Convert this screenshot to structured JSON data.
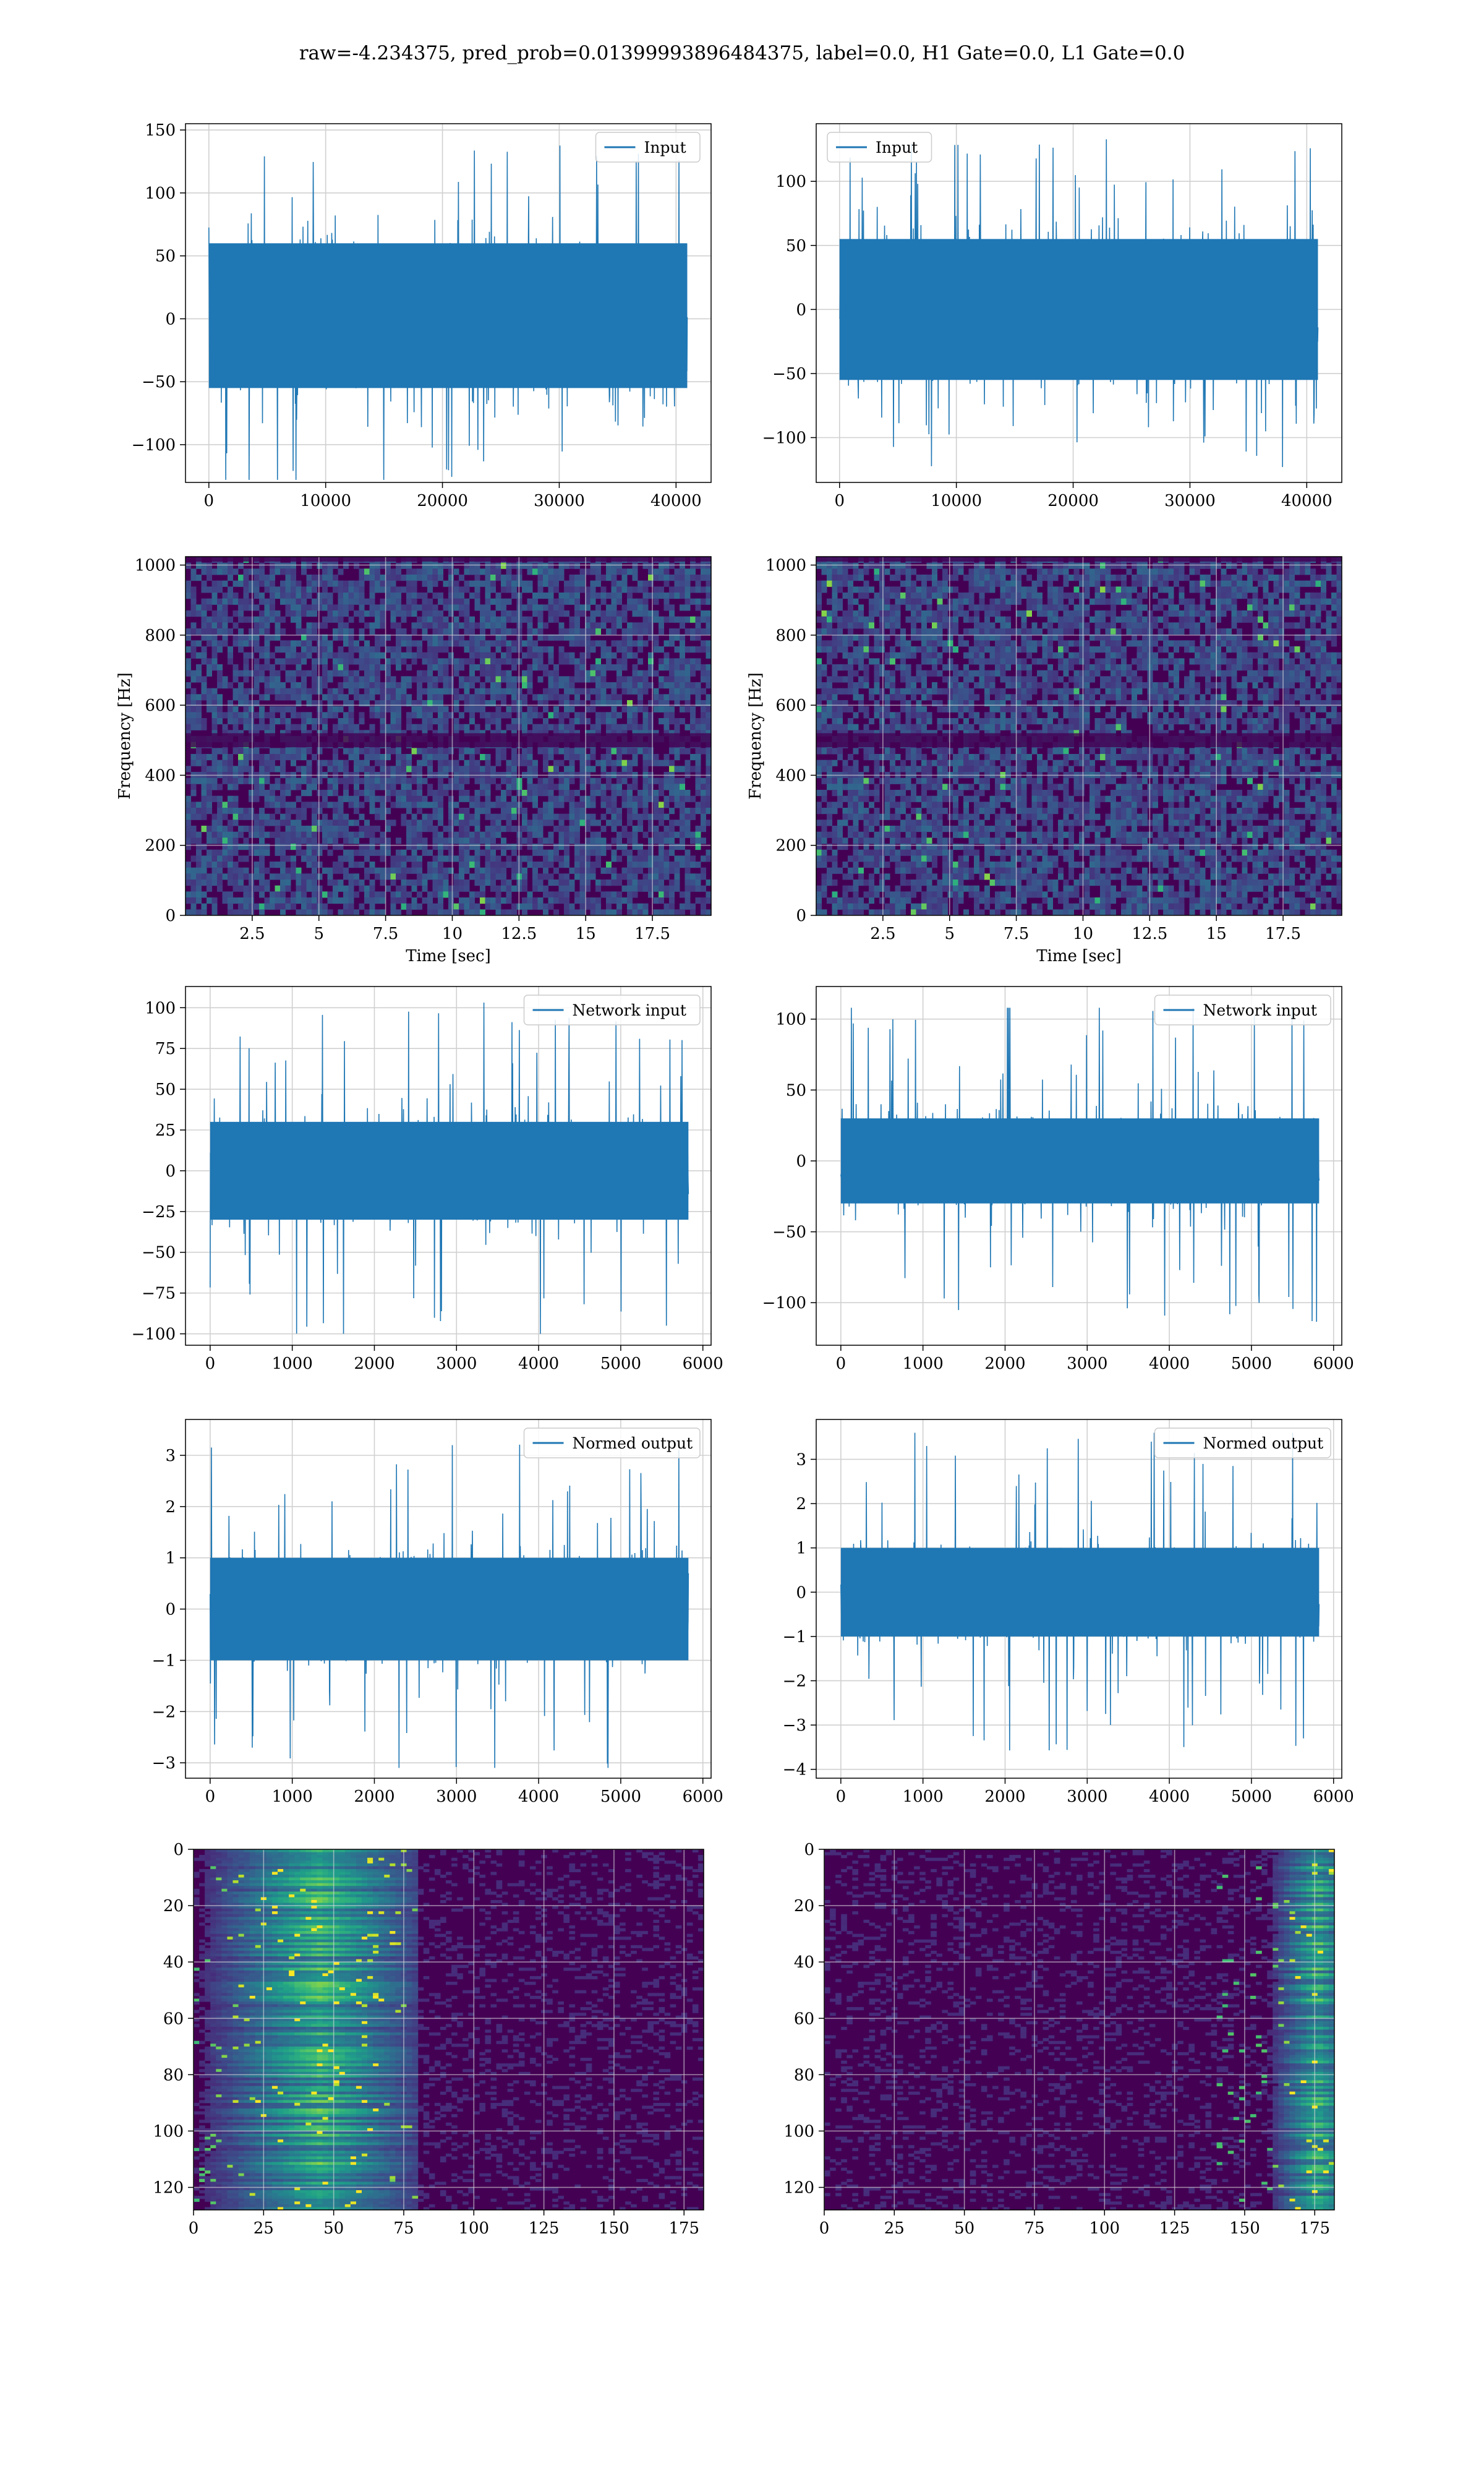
{
  "figure": {
    "title": "raw=-4.234375, pred_prob=0.01399993896484375, label=0.0, H1 Gate=0.0, L1 Gate=0.0"
  },
  "colors": {
    "line": "#1f77b4",
    "grid": "#d0d0d0",
    "viridis_dark": "#440154",
    "viridis_mid": "#31688e",
    "viridis_green": "#35b779",
    "viridis_yellow": "#fde725"
  },
  "chart_data": [
    {
      "id": "input-h1",
      "type": "line",
      "legend": "Input",
      "legend_loc": "upper right",
      "series": [
        {
          "name": "Input",
          "n_samples": 40960,
          "envelope_approx": [
            -128,
            141
          ],
          "bulk_approx": [
            -55,
            60
          ]
        }
      ],
      "xlim": [
        -2000,
        43000
      ],
      "ylim": [
        -130,
        155
      ],
      "xticks": [
        0,
        10000,
        20000,
        30000,
        40000
      ],
      "yticks": [
        -100,
        -50,
        0,
        50,
        100,
        150
      ],
      "xlabel": "",
      "ylabel": "",
      "grid": true
    },
    {
      "id": "input-l1",
      "type": "line",
      "legend": "Input",
      "legend_loc": "upper left",
      "series": [
        {
          "name": "Input",
          "n_samples": 40960,
          "envelope_approx": [
            -123,
            133
          ],
          "bulk_approx": [
            -55,
            55
          ]
        }
      ],
      "xlim": [
        -2000,
        43000
      ],
      "ylim": [
        -135,
        145
      ],
      "xticks": [
        0,
        10000,
        20000,
        30000,
        40000
      ],
      "yticks": [
        -100,
        -50,
        0,
        50,
        100
      ],
      "xlabel": "",
      "ylabel": "",
      "grid": true
    },
    {
      "id": "spec-h1",
      "type": "heatmap",
      "colormap": "viridis",
      "xlim": [
        0,
        19.7
      ],
      "ylim": [
        0,
        1024
      ],
      "xticks": [
        2.5,
        5.0,
        7.5,
        10.0,
        12.5,
        15.0,
        17.5
      ],
      "yticks": [
        0,
        200,
        400,
        600,
        800,
        1000
      ],
      "xlabel": "Time [sec]",
      "ylabel": "Frequency [Hz]",
      "grid": true
    },
    {
      "id": "spec-l1",
      "type": "heatmap",
      "colormap": "viridis",
      "xlim": [
        0,
        19.7
      ],
      "ylim": [
        0,
        1024
      ],
      "xticks": [
        2.5,
        5.0,
        7.5,
        10.0,
        12.5,
        15.0,
        17.5
      ],
      "yticks": [
        0,
        200,
        400,
        600,
        800,
        1000
      ],
      "xlabel": "Time [sec]",
      "ylabel": "Frequency [Hz]",
      "grid": true
    },
    {
      "id": "net-h1",
      "type": "line",
      "legend": "Network input",
      "legend_loc": "upper right",
      "series": [
        {
          "name": "Network input",
          "n_samples": 5824,
          "envelope_approx": [
            -100,
            105
          ],
          "bulk_approx": [
            -30,
            30
          ]
        }
      ],
      "xlim": [
        -300,
        6100
      ],
      "ylim": [
        -107,
        113
      ],
      "xticks": [
        0,
        1000,
        2000,
        3000,
        4000,
        5000,
        6000
      ],
      "yticks": [
        -100,
        -75,
        -50,
        -25,
        0,
        25,
        50,
        75,
        100
      ],
      "xlabel": "",
      "ylabel": "",
      "grid": true
    },
    {
      "id": "net-l1",
      "type": "line",
      "legend": "Network input",
      "legend_loc": "upper right",
      "series": [
        {
          "name": "Network input",
          "n_samples": 5824,
          "envelope_approx": [
            -118,
            108
          ],
          "bulk_approx": [
            -30,
            30
          ]
        }
      ],
      "xlim": [
        -300,
        6100
      ],
      "ylim": [
        -130,
        123
      ],
      "xticks": [
        0,
        1000,
        2000,
        3000,
        4000,
        5000,
        6000
      ],
      "yticks": [
        -100,
        -50,
        0,
        50,
        100
      ],
      "xlabel": "",
      "ylabel": "",
      "grid": true
    },
    {
      "id": "norm-h1",
      "type": "line",
      "legend": "Normed output",
      "legend_loc": "upper right",
      "series": [
        {
          "name": "Normed output",
          "n_samples": 5824,
          "envelope_approx": [
            -3.1,
            3.4
          ],
          "bulk_approx": [
            -1.0,
            1.0
          ]
        }
      ],
      "xlim": [
        -300,
        6100
      ],
      "ylim": [
        -3.3,
        3.7
      ],
      "xticks": [
        0,
        1000,
        2000,
        3000,
        4000,
        5000,
        6000
      ],
      "yticks": [
        -3,
        -2,
        -1,
        0,
        1,
        2,
        3
      ],
      "xlabel": "",
      "ylabel": "",
      "grid": true
    },
    {
      "id": "norm-l1",
      "type": "line",
      "legend": "Normed output",
      "legend_loc": "upper right",
      "series": [
        {
          "name": "Normed output",
          "n_samples": 5824,
          "envelope_approx": [
            -3.9,
            3.6
          ],
          "bulk_approx": [
            -1.0,
            1.0
          ]
        }
      ],
      "xlim": [
        -300,
        6100
      ],
      "ylim": [
        -4.2,
        3.9
      ],
      "xticks": [
        0,
        1000,
        2000,
        3000,
        4000,
        5000,
        6000
      ],
      "yticks": [
        -4,
        -3,
        -2,
        -1,
        0,
        1,
        2,
        3
      ],
      "xlabel": "",
      "ylabel": "",
      "grid": true
    },
    {
      "id": "feat-h1",
      "type": "heatmap",
      "colormap": "viridis",
      "shape": [
        128,
        182
      ],
      "hot_band_x": [
        0,
        80
      ],
      "xlim": [
        0,
        182
      ],
      "ylim": [
        128,
        0
      ],
      "xticks": [
        0,
        25,
        50,
        75,
        100,
        125,
        150,
        175
      ],
      "yticks": [
        0,
        20,
        40,
        60,
        80,
        100,
        120
      ],
      "xlabel": "",
      "ylabel": "",
      "grid": true
    },
    {
      "id": "feat-l1",
      "type": "heatmap",
      "colormap": "viridis",
      "shape": [
        128,
        182
      ],
      "hot_band_x": [
        140,
        182
      ],
      "xlim": [
        0,
        182
      ],
      "ylim": [
        128,
        0
      ],
      "xticks": [
        0,
        25,
        50,
        75,
        100,
        125,
        150,
        175
      ],
      "yticks": [
        0,
        20,
        40,
        60,
        80,
        100,
        120
      ],
      "xlabel": "",
      "ylabel": "",
      "grid": true
    }
  ]
}
